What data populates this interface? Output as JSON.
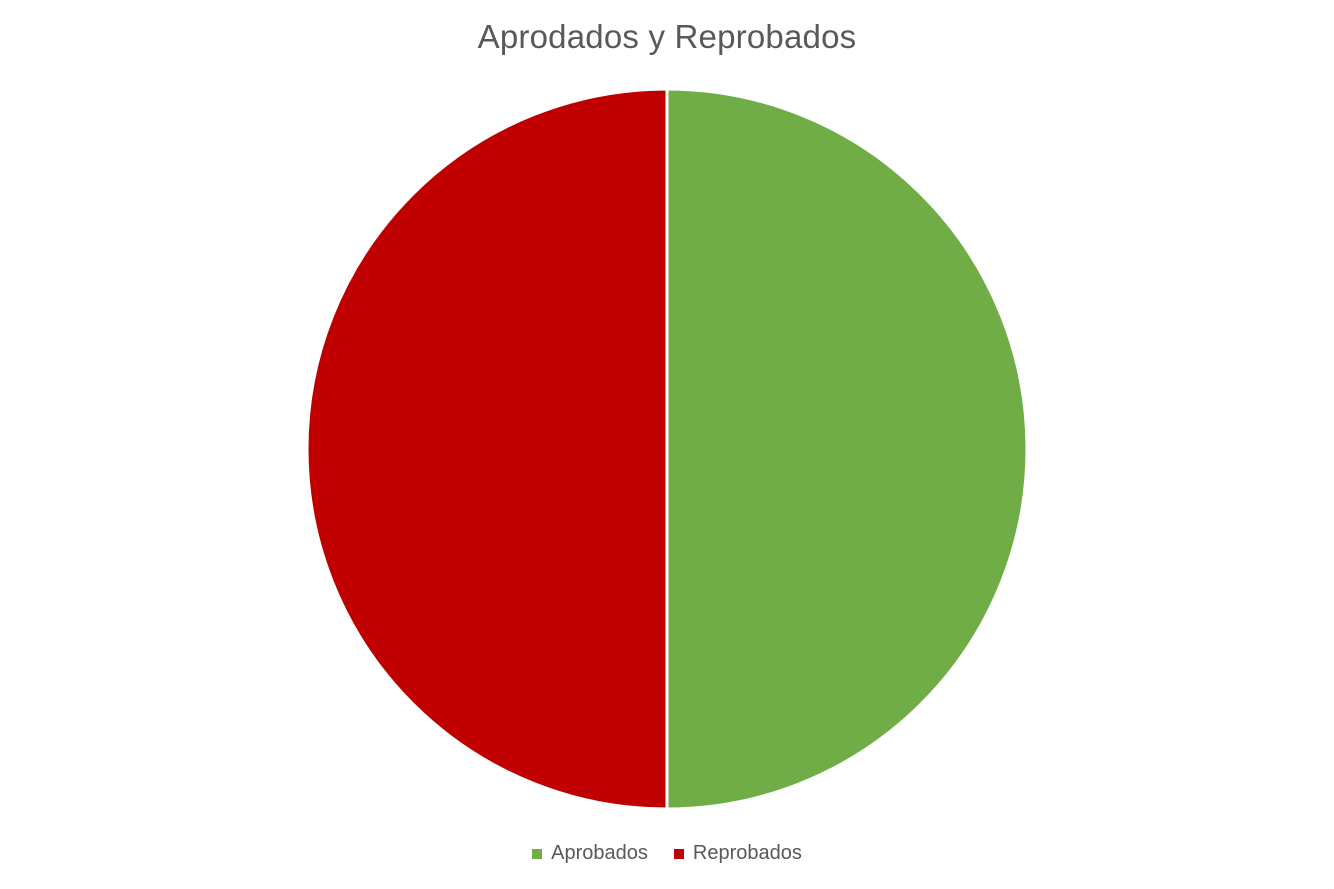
{
  "chart_data": {
    "type": "pie",
    "title": "Aprodados y Reprobados",
    "series": [
      {
        "name": "Aprobados",
        "value": 50,
        "color": "#70AD47"
      },
      {
        "name": "Reprobados",
        "value": 50,
        "color": "#C00000"
      }
    ],
    "legend_position": "bottom",
    "slice_separator_color": "#FFFFFF"
  }
}
